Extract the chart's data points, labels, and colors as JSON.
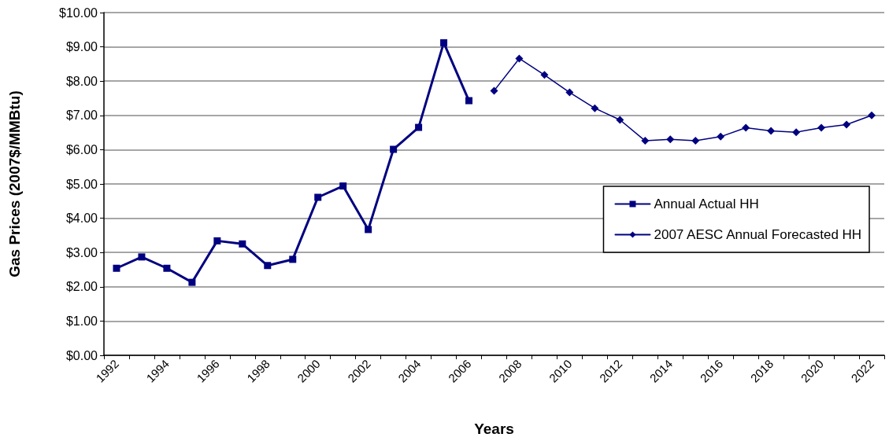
{
  "chart_data": {
    "type": "line",
    "xlabel": "Years",
    "ylabel": "Gas Prices (2007$/MMBtu)",
    "categories": [
      "1992",
      null,
      "1994",
      null,
      "1996",
      null,
      "1998",
      null,
      "2000",
      null,
      "2002",
      null,
      "2004",
      null,
      "2006",
      null,
      "2008",
      null,
      "2010",
      null,
      "2012",
      null,
      "2014",
      null,
      "2016",
      null,
      "2018",
      null,
      "2020",
      null,
      "2022"
    ],
    "series": [
      {
        "name": "Annual Actual HH",
        "color": "#000080",
        "marker": "square",
        "values": [
          2.54,
          2.87,
          2.54,
          2.13,
          3.34,
          3.25,
          2.62,
          2.8,
          4.61,
          4.94,
          3.67,
          6.01,
          6.65,
          9.12,
          7.43,
          null,
          null,
          null,
          null,
          null,
          null,
          null,
          null,
          null,
          null,
          null,
          null,
          null,
          null,
          null,
          null
        ]
      },
      {
        "name": "2007 AESC Annual Forecasted HH",
        "color": "#000080",
        "marker": "diamond",
        "values": [
          null,
          null,
          null,
          null,
          null,
          null,
          null,
          null,
          null,
          null,
          null,
          null,
          null,
          null,
          null,
          7.72,
          8.66,
          8.18,
          7.67,
          7.21,
          6.87,
          6.26,
          6.3,
          6.26,
          6.38,
          6.64,
          6.55,
          6.51,
          6.64,
          6.73,
          7.0
        ]
      }
    ],
    "ylim": [
      0,
      10
    ],
    "yticks": [
      {
        "value": 0,
        "label": "$0.00"
      },
      {
        "value": 1,
        "label": "$1.00"
      },
      {
        "value": 2,
        "label": "$2.00"
      },
      {
        "value": 3,
        "label": "$3.00"
      },
      {
        "value": 4,
        "label": "$4.00"
      },
      {
        "value": 5,
        "label": "$5.00"
      },
      {
        "value": 6,
        "label": "$6.00"
      },
      {
        "value": 7,
        "label": "$7.00"
      },
      {
        "value": 8,
        "label": "$8.00"
      },
      {
        "value": 9,
        "label": "$9.00"
      },
      {
        "value": 10,
        "label": "$10.00"
      }
    ],
    "grid": "y",
    "legend": "right",
    "line_style": "solid"
  }
}
